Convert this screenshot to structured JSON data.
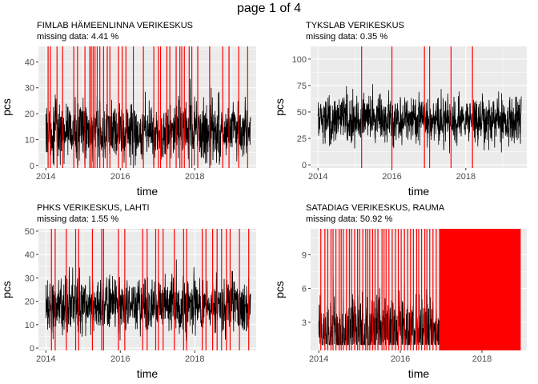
{
  "page_title": "page 1 of 4",
  "colors": {
    "series": "#000000",
    "missing": "#ff0000",
    "panel_bg": "#ebebeb",
    "grid": "#ffffff"
  },
  "chart_data": [
    {
      "type": "line",
      "title": "FIMLAB  HÄMEENLINNA VERIKESKUS",
      "subtitle": " missing data:  4.41 %",
      "xlabel": "time",
      "ylabel": "pcs",
      "xlim": [
        2013.8,
        2019.65
      ],
      "ylim": [
        -1,
        46
      ],
      "x_ticks": [
        2014,
        2016,
        2018
      ],
      "x_tick_labels": [
        "2014",
        "2016",
        "2018"
      ],
      "y_ticks": [
        0,
        10,
        20,
        30,
        40
      ],
      "y_tick_labels": [
        "0",
        "10",
        "20",
        "30",
        "40"
      ],
      "series_x_range": [
        2014.0,
        2019.5
      ],
      "series_level": 13,
      "series_spread": 5.5,
      "series_min": 0,
      "series_max": 45,
      "missing_x": [
        2014.06,
        2014.12,
        2014.3,
        2014.45,
        2014.75,
        2014.85,
        2015.05,
        2015.18,
        2015.22,
        2015.27,
        2015.32,
        2015.38,
        2015.45,
        2015.55,
        2015.65,
        2015.72,
        2015.95,
        2016.05,
        2016.15,
        2016.35,
        2016.62,
        2016.9,
        2017.02,
        2017.08,
        2017.25,
        2017.33,
        2017.5,
        2017.6,
        2017.65,
        2017.72,
        2017.85,
        2017.92,
        2018.08,
        2018.4,
        2018.75,
        2018.92,
        2019.18,
        2019.42
      ],
      "grid": true,
      "legend": "none"
    },
    {
      "type": "line",
      "title": "TYKSLAB VERIKESKUS",
      "subtitle": " missing data:  0.35 %",
      "xlabel": "time",
      "ylabel": "pcs",
      "xlim": [
        2013.8,
        2019.65
      ],
      "ylim": [
        -3,
        112
      ],
      "x_ticks": [
        2014,
        2016,
        2018
      ],
      "x_tick_labels": [
        "2014",
        "2016",
        "2018"
      ],
      "y_ticks": [
        0,
        25,
        50,
        75,
        100
      ],
      "y_tick_labels": [
        "0",
        "25",
        "50",
        "75",
        "100"
      ],
      "series_x_range": [
        2014.0,
        2019.5
      ],
      "series_level": 42,
      "series_spread": 11,
      "series_min": 10,
      "series_max": 105,
      "missing_x": [
        2015.18,
        2016.0,
        2016.88,
        2017.02,
        2017.6,
        2018.18
      ],
      "grid": true,
      "legend": "none"
    },
    {
      "type": "line",
      "title": "PHKS VERIKESKUS, LAHTI",
      "subtitle": " missing data:  1.55 %",
      "xlabel": "time",
      "ylabel": "pcs",
      "xlim": [
        2013.8,
        2019.65
      ],
      "ylim": [
        -1,
        51
      ],
      "x_ticks": [
        2014,
        2016,
        2018
      ],
      "x_tick_labels": [
        "2014",
        "2016",
        "2018"
      ],
      "y_ticks": [
        0,
        10,
        20,
        30,
        40,
        50
      ],
      "y_tick_labels": [
        "0",
        "10",
        "20",
        "30",
        "40",
        "50"
      ],
      "series_x_range": [
        2014.0,
        2019.5
      ],
      "series_level": 18,
      "series_spread": 6,
      "series_min": 3,
      "series_max": 44,
      "missing_x": [
        2014.15,
        2014.25,
        2014.55,
        2014.8,
        2014.88,
        2015.25,
        2015.5,
        2015.55,
        2015.95,
        2016.12,
        2016.6,
        2016.72,
        2016.95,
        2017.02,
        2017.15,
        2017.45,
        2017.7,
        2017.78,
        2018.2,
        2018.3,
        2018.48,
        2018.6,
        2018.72,
        2018.85,
        2018.95,
        2019.2,
        2019.45
      ],
      "grid": true,
      "legend": "none"
    },
    {
      "type": "line",
      "title": "SATADIAG VERIKESKUS, RAUMA",
      "subtitle": " missing data:  50.92 %",
      "xlabel": "time",
      "ylabel": "pcs",
      "xlim": [
        2013.8,
        2019.1
      ],
      "ylim": [
        0.5,
        11.3
      ],
      "x_ticks": [
        2014,
        2016,
        2018
      ],
      "x_tick_labels": [
        "2014",
        "2016",
        "2018"
      ],
      "y_ticks": [
        3,
        6,
        9
      ],
      "y_tick_labels": [
        "3",
        "6",
        "9"
      ],
      "series_x_range": [
        2014.0,
        2016.95
      ],
      "series_level": 2.2,
      "series_spread": 1.5,
      "series_min": 1,
      "series_max": 7,
      "missing_x": [
        2014.05,
        2014.15,
        2014.22,
        2014.3,
        2014.35,
        2014.42,
        2014.5,
        2014.55,
        2014.6,
        2014.68,
        2014.75,
        2014.8,
        2014.88,
        2014.95,
        2015.0,
        2015.08,
        2015.15,
        2015.2,
        2015.25,
        2015.32,
        2015.38,
        2015.45,
        2015.55,
        2015.6,
        2015.65,
        2015.72,
        2015.8,
        2015.88,
        2015.95,
        2016.02,
        2016.1,
        2016.18,
        2016.25,
        2016.32,
        2016.4,
        2016.45,
        2016.52,
        2016.6,
        2016.65,
        2016.72,
        2016.8,
        2016.88
      ],
      "missing_block": [
        2016.95,
        2018.95
      ],
      "grid": true,
      "legend": "none"
    }
  ]
}
